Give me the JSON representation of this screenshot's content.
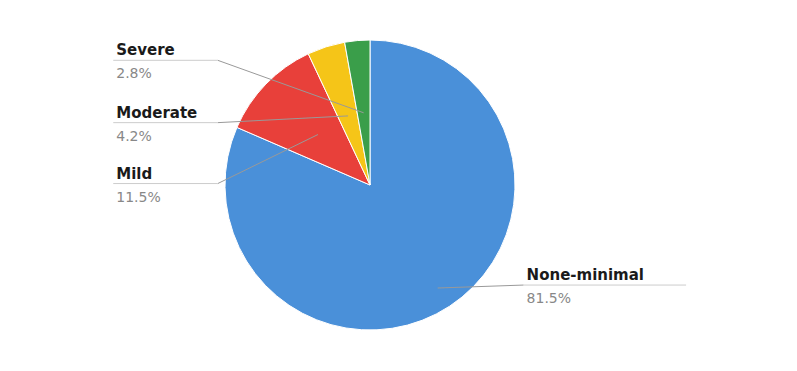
{
  "chart_data": {
    "type": "pie",
    "categories": [
      "None-minimal",
      "Mild",
      "Moderate",
      "Severe"
    ],
    "values": [
      81.5,
      11.5,
      4.2,
      2.8
    ],
    "value_labels": [
      "81.5%",
      "11.5%",
      "4.2%",
      "2.8%"
    ],
    "colors": [
      "#4a90d9",
      "#e8403a",
      "#f5c518",
      "#3a9e4a"
    ],
    "data_labels": true
  }
}
